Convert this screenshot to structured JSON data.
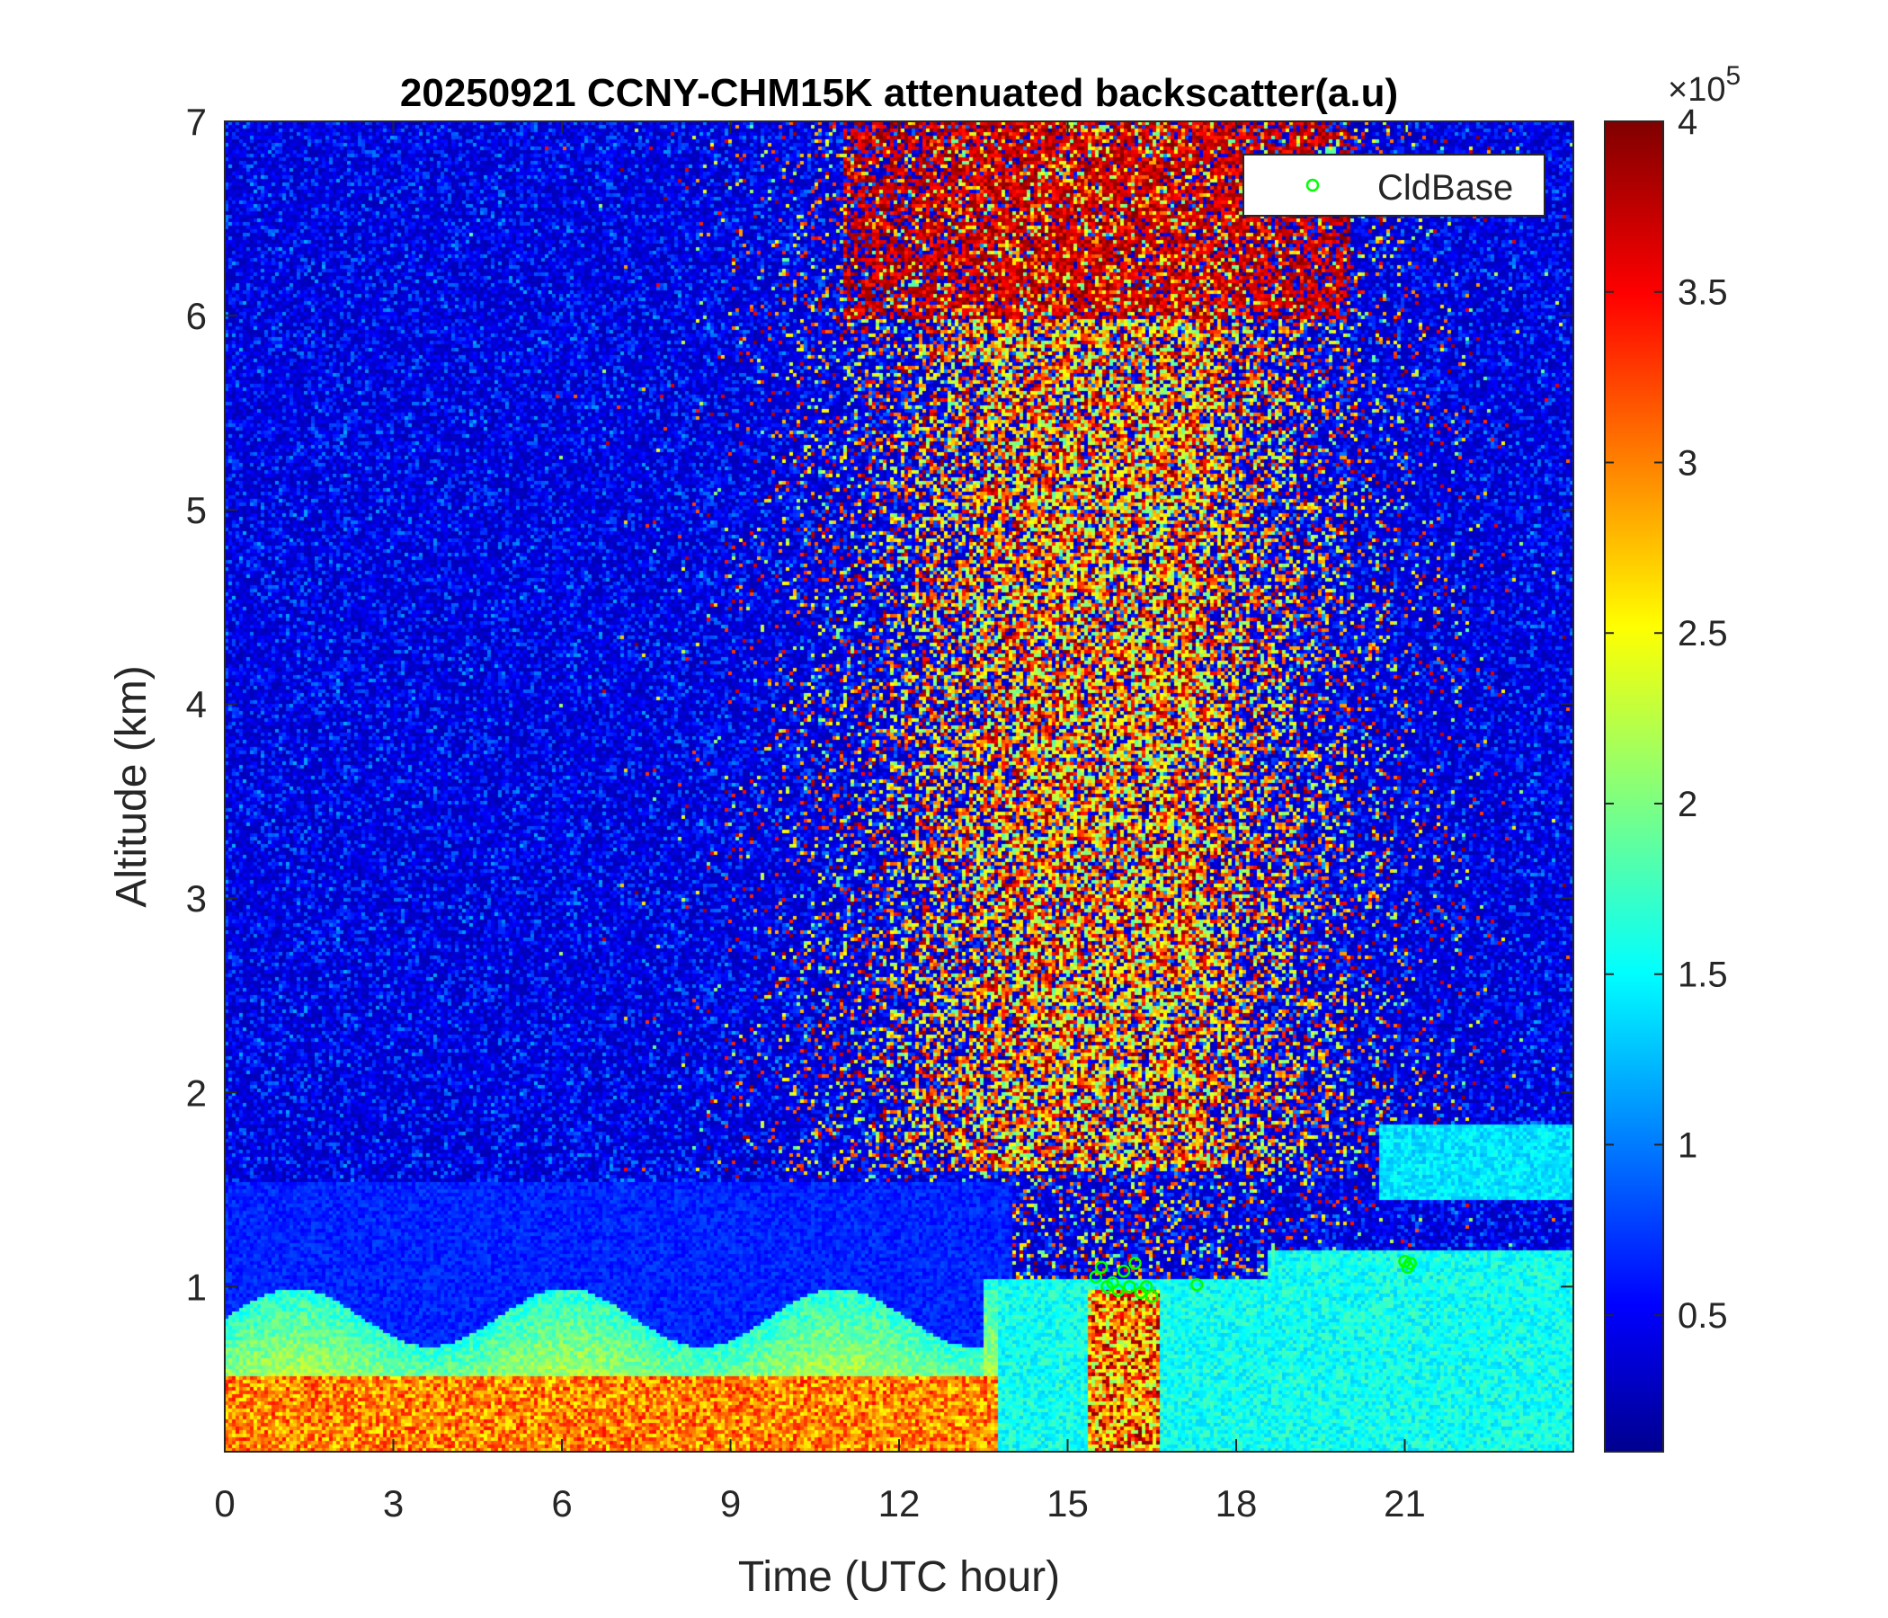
{
  "chart_data": {
    "type": "heatmap",
    "title": "20250921 CCNY-CHM15K attenuated backscatter(a.u)",
    "xlabel": "Time (UTC hour)",
    "ylabel": "Altitude (km)",
    "xlim": [
      0,
      24
    ],
    "ylim": [
      0.15,
      7
    ],
    "x_ticks": [
      "0",
      "3",
      "6",
      "9",
      "12",
      "15",
      "18",
      "21"
    ],
    "y_ticks": [
      "1",
      "2",
      "3",
      "4",
      "5",
      "6",
      "7"
    ],
    "colorbar": {
      "colormap": "jet",
      "clim": [
        0.1,
        4
      ],
      "ticks": [
        "0.5",
        "1",
        "1.5",
        "2",
        "2.5",
        "3",
        "3.5",
        "4"
      ],
      "exponent_label": "×10",
      "exponent": "5"
    },
    "legend": {
      "placement": "top-right",
      "entries": [
        {
          "label": "CldBase",
          "marker": "circle",
          "color": "#00ff00"
        }
      ]
    },
    "cloud_base_points": [
      {
        "x": 15.5,
        "y": 1.05
      },
      {
        "x": 15.6,
        "y": 1.1
      },
      {
        "x": 15.7,
        "y": 1.0
      },
      {
        "x": 15.8,
        "y": 1.02
      },
      {
        "x": 15.9,
        "y": 0.98
      },
      {
        "x": 16.0,
        "y": 1.08
      },
      {
        "x": 16.1,
        "y": 1.0
      },
      {
        "x": 16.2,
        "y": 1.12
      },
      {
        "x": 16.3,
        "y": 0.97
      },
      {
        "x": 16.4,
        "y": 1.0
      },
      {
        "x": 16.5,
        "y": 0.95
      },
      {
        "x": 17.3,
        "y": 1.01
      },
      {
        "x": 21.0,
        "y": 1.13
      },
      {
        "x": 21.05,
        "y": 1.1
      },
      {
        "x": 21.1,
        "y": 1.12
      }
    ]
  }
}
